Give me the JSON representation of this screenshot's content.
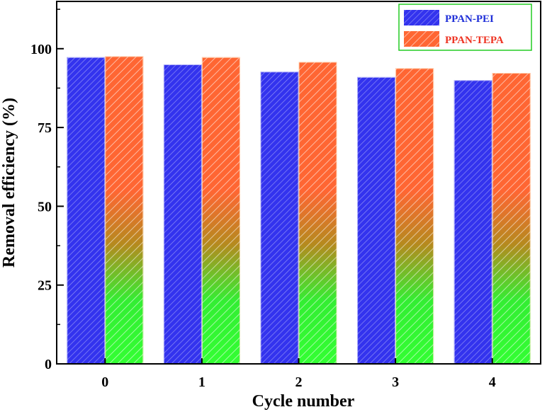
{
  "chart_data": {
    "type": "bar",
    "title": "",
    "xlabel": "Cycle number",
    "ylabel": "Removal efficiency (%)",
    "categories": [
      "0",
      "1",
      "2",
      "3",
      "4"
    ],
    "ylim": [
      0,
      115
    ],
    "yticks": [
      0,
      25,
      50,
      75,
      100
    ],
    "legend_position": "top-right",
    "series": [
      {
        "name": "PPAN-PEI",
        "values": [
          97.3,
          95.0,
          92.7,
          91.0,
          90.0
        ],
        "color": "#3333ee",
        "label_color": "#1f2fd8"
      },
      {
        "name": "PPAN-TEPA",
        "values": [
          97.6,
          97.3,
          95.8,
          93.8,
          92.3
        ],
        "color_top": "#ff6633",
        "color_bottom": "#33ff33",
        "label_color": "#ee3322"
      }
    ]
  }
}
